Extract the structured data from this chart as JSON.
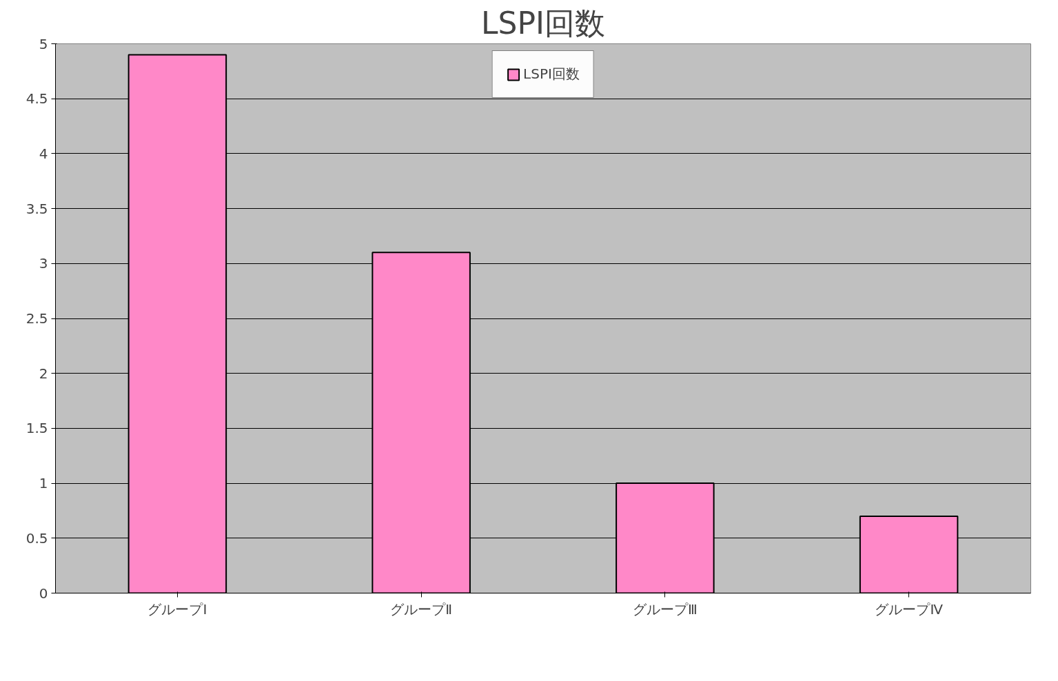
{
  "chart_data": {
    "type": "bar",
    "title": "LSPI回数",
    "categories": [
      "グループⅠ",
      "グループⅡ",
      "グループⅢ",
      "グループⅣ"
    ],
    "series": [
      {
        "name": "LSPI回数",
        "color": "#ff88c8",
        "values": [
          4.9,
          3.1,
          1.0,
          0.7
        ]
      }
    ],
    "ylim": [
      0,
      5
    ],
    "yticks": [
      0,
      0.5,
      1,
      1.5,
      2,
      2.5,
      3,
      3.5,
      4,
      4.5,
      5
    ],
    "grid": "y",
    "legend": "top"
  }
}
